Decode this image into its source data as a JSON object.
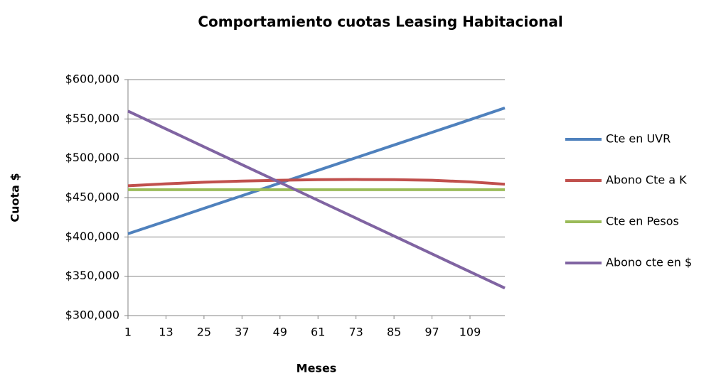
{
  "chart_data": {
    "type": "line",
    "title": "Comportamiento cuotas Leasing Habitacional",
    "x_label": "Meses",
    "y_label": "Cuota $",
    "x": [
      1,
      13,
      25,
      37,
      49,
      61,
      73,
      85,
      97,
      109,
      120
    ],
    "xlim": [
      1,
      120
    ],
    "xticks": [
      1,
      13,
      25,
      37,
      49,
      61,
      73,
      85,
      97,
      109
    ],
    "ylim": [
      300000,
      600000
    ],
    "yticks": [
      {
        "value": 300000,
        "label": "$300,000"
      },
      {
        "value": 350000,
        "label": "$350,000"
      },
      {
        "value": 400000,
        "label": "$400,000"
      },
      {
        "value": 450000,
        "label": "$450,000"
      },
      {
        "value": 500000,
        "label": "$500,000"
      },
      {
        "value": 550000,
        "label": "$550,000"
      },
      {
        "value": 600000,
        "label": "$600,000"
      }
    ],
    "grid": true,
    "legend": "right",
    "series": [
      {
        "name": "Cte en UVR",
        "color": "#4f81bd",
        "values": [
          404000,
          420100,
          436300,
          452400,
          468500,
          484600,
          500700,
          516800,
          532900,
          549000,
          564000
        ]
      },
      {
        "name": "Abono Cte a K",
        "color": "#c0504d",
        "values": [
          465000,
          467500,
          469500,
          471000,
          472000,
          472800,
          473000,
          472800,
          472000,
          470000,
          467000
        ]
      },
      {
        "name": "Cte en Pesos",
        "color": "#9bbb59",
        "values": [
          460000,
          460000,
          460000,
          460000,
          460000,
          460000,
          460000,
          460000,
          460000,
          460000,
          460000
        ]
      },
      {
        "name": "Abono cte en $",
        "color": "#8064a2",
        "values": [
          560000,
          537300,
          514600,
          491900,
          469200,
          446500,
          423800,
          401100,
          378400,
          355700,
          335000
        ]
      }
    ]
  }
}
